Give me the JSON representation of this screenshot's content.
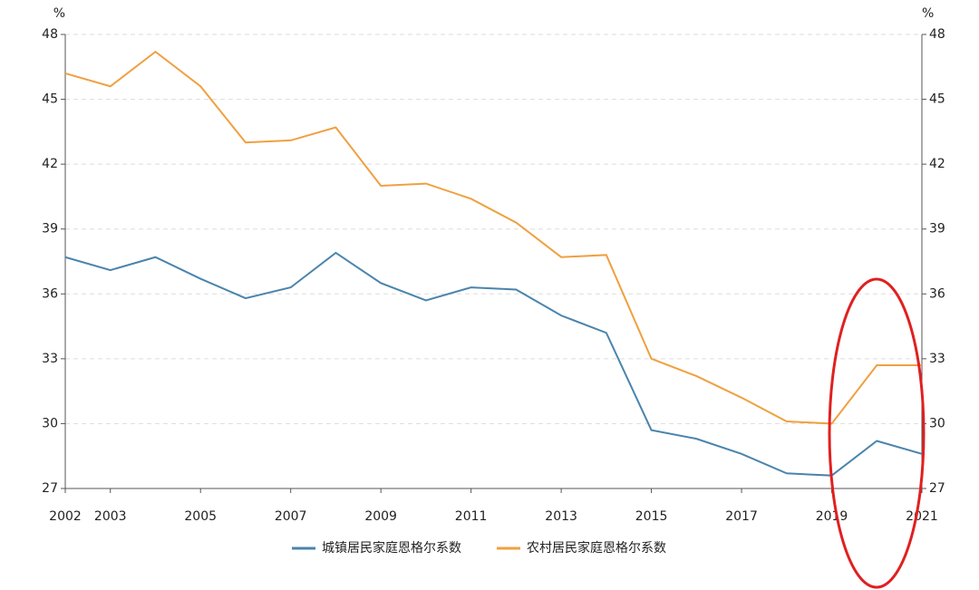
{
  "chart_data": {
    "type": "line",
    "x": [
      2002,
      2003,
      2004,
      2005,
      2006,
      2007,
      2008,
      2009,
      2010,
      2011,
      2012,
      2013,
      2014,
      2015,
      2016,
      2017,
      2018,
      2019,
      2020,
      2021
    ],
    "series": [
      {
        "name": "城镇居民家庭恩格尔系数",
        "color": "#4a84ad",
        "values": [
          37.7,
          37.1,
          37.7,
          36.7,
          35.8,
          36.3,
          37.9,
          36.5,
          35.7,
          36.3,
          36.2,
          35.0,
          34.2,
          29.7,
          29.3,
          28.6,
          27.7,
          27.6,
          29.2,
          28.6
        ]
      },
      {
        "name": "农村居民家庭恩格尔系数",
        "color": "#f0a040",
        "values": [
          46.2,
          45.6,
          47.2,
          45.6,
          43.0,
          43.1,
          43.7,
          41.0,
          41.1,
          40.4,
          39.3,
          37.7,
          37.8,
          33.0,
          32.2,
          31.2,
          30.1,
          30.0,
          32.7,
          32.7
        ]
      }
    ],
    "xlim": [
      2002,
      2021
    ],
    "xticks": [
      2002,
      2003,
      2005,
      2007,
      2009,
      2011,
      2013,
      2015,
      2017,
      2019,
      2021
    ],
    "ylim": [
      27,
      48
    ],
    "yticks": [
      27,
      30,
      33,
      36,
      39,
      42,
      45,
      48
    ],
    "y2lim": [
      27,
      48
    ],
    "y2ticks": [
      27,
      30,
      33,
      36,
      39,
      42,
      45,
      48
    ],
    "y_label": "%",
    "y2_label": "%",
    "grid": true,
    "legend": "bottom"
  }
}
